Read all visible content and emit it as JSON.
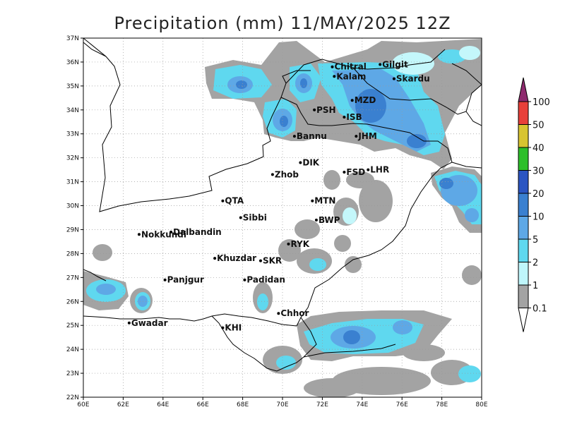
{
  "title": "Precipitation (mm) 11/MAY/2025 12Z",
  "map": {
    "x_ticks": [
      "60E",
      "62E",
      "64E",
      "66E",
      "68E",
      "70E",
      "72E",
      "74E",
      "76E",
      "78E",
      "80E"
    ],
    "y_ticks": [
      "37N",
      "36N",
      "35N",
      "34N",
      "33N",
      "32N",
      "31N",
      "30N",
      "29N",
      "28N",
      "27N",
      "26N",
      "25N",
      "24N",
      "23N",
      "22N"
    ],
    "lon_range": [
      60,
      80
    ],
    "lat_range": [
      22,
      37
    ],
    "cities": [
      {
        "name": "Chitral",
        "lon": 72.5,
        "lat": 35.8
      },
      {
        "name": "Gilgit",
        "lon": 74.9,
        "lat": 35.9
      },
      {
        "name": "Kalam",
        "lon": 72.6,
        "lat": 35.4
      },
      {
        "name": "Skardu",
        "lon": 75.6,
        "lat": 35.3
      },
      {
        "name": "MZD",
        "lon": 73.5,
        "lat": 34.4
      },
      {
        "name": "PSH",
        "lon": 71.6,
        "lat": 34.0
      },
      {
        "name": "ISB",
        "lon": 73.1,
        "lat": 33.7
      },
      {
        "name": "JHM",
        "lon": 73.7,
        "lat": 32.9
      },
      {
        "name": "Bannu",
        "lon": 70.6,
        "lat": 32.9
      },
      {
        "name": "DIK",
        "lon": 70.9,
        "lat": 31.8
      },
      {
        "name": "FSD",
        "lon": 73.1,
        "lat": 31.4
      },
      {
        "name": "LHR",
        "lon": 74.3,
        "lat": 31.5
      },
      {
        "name": "Zhob",
        "lon": 69.5,
        "lat": 31.3
      },
      {
        "name": "QTA",
        "lon": 67.0,
        "lat": 30.2
      },
      {
        "name": "MTN",
        "lon": 71.5,
        "lat": 30.2
      },
      {
        "name": "Sibbi",
        "lon": 67.9,
        "lat": 29.5
      },
      {
        "name": "BWP",
        "lon": 71.7,
        "lat": 29.4
      },
      {
        "name": "Dalbandin",
        "lon": 64.4,
        "lat": 28.9
      },
      {
        "name": "Nokkundi",
        "lon": 62.8,
        "lat": 28.8
      },
      {
        "name": "RYK",
        "lon": 70.3,
        "lat": 28.4
      },
      {
        "name": "Khuzdar",
        "lon": 66.6,
        "lat": 27.8
      },
      {
        "name": "SKR",
        "lon": 68.9,
        "lat": 27.7
      },
      {
        "name": "Padidan",
        "lon": 68.1,
        "lat": 26.9
      },
      {
        "name": "Panjgur",
        "lon": 64.1,
        "lat": 26.9
      },
      {
        "name": "Chhor",
        "lon": 69.8,
        "lat": 25.5
      },
      {
        "name": "KHI",
        "lon": 67.0,
        "lat": 24.9
      },
      {
        "name": "Gwadar",
        "lon": 62.3,
        "lat": 25.1
      }
    ]
  },
  "colorbar": {
    "levels": [
      "100",
      "50",
      "40",
      "30",
      "20",
      "10",
      "5",
      "2",
      "1",
      "0.1"
    ],
    "colors": {
      "c0": "#8e2a6e",
      "c1": "#e8403a",
      "c2": "#d8c431",
      "c3": "#2dbf2a",
      "c4": "#2b55c2",
      "c5": "#3a80d0",
      "c6": "#5ea8e6",
      "c7": "#5fd8ef",
      "c8": "#bff6fb",
      "c9": "#a3a3a3",
      "c10": "#ffffff"
    }
  },
  "palette": {
    "grey": "#a3a3a3",
    "vlight": "#c4f7fb",
    "light": "#5fd8ef",
    "mid": "#5ea8e6",
    "dark": "#3a80d0",
    "deep": "#2b55c2"
  }
}
